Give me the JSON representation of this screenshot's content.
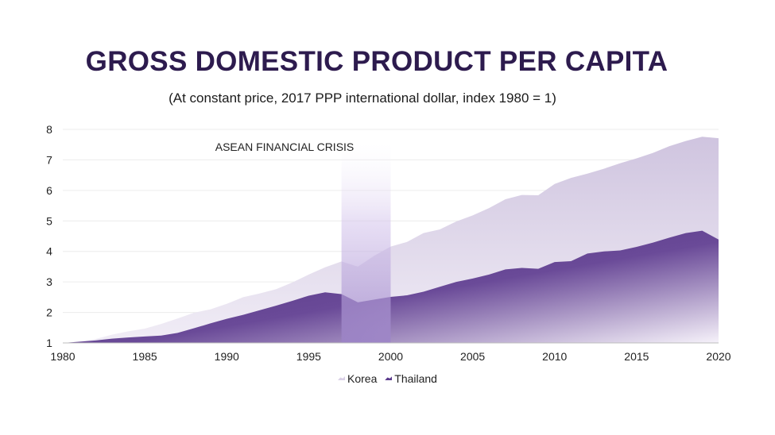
{
  "title": "GROSS DOMESTIC PRODUCT PER CAPITA",
  "subtitle": "(At constant price, 2017 PPP international dollar, index 1980 = 1)",
  "chart_data": {
    "type": "area",
    "x": [
      1980,
      1981,
      1982,
      1983,
      1984,
      1985,
      1986,
      1987,
      1988,
      1989,
      1990,
      1991,
      1992,
      1993,
      1994,
      1995,
      1996,
      1997,
      1998,
      1999,
      2000,
      2001,
      2002,
      2003,
      2004,
      2005,
      2006,
      2007,
      2008,
      2009,
      2010,
      2011,
      2012,
      2013,
      2014,
      2015,
      2016,
      2017,
      2018,
      2019,
      2020
    ],
    "series": [
      {
        "name": "Korea",
        "color": "#d9d0e6",
        "values": [
          1.0,
          1.05,
          1.13,
          1.27,
          1.38,
          1.47,
          1.62,
          1.8,
          1.99,
          2.1,
          2.28,
          2.5,
          2.62,
          2.76,
          2.98,
          3.24,
          3.48,
          3.67,
          3.5,
          3.86,
          4.16,
          4.31,
          4.6,
          4.72,
          4.98,
          5.18,
          5.42,
          5.71,
          5.85,
          5.84,
          6.21,
          6.41,
          6.55,
          6.71,
          6.89,
          7.05,
          7.23,
          7.45,
          7.62,
          7.76,
          7.71
        ]
      },
      {
        "name": "Thailand",
        "color": "#5b3a8c",
        "values": [
          1.0,
          1.04,
          1.08,
          1.14,
          1.18,
          1.21,
          1.24,
          1.33,
          1.48,
          1.64,
          1.79,
          1.92,
          2.07,
          2.22,
          2.38,
          2.55,
          2.66,
          2.6,
          2.33,
          2.42,
          2.51,
          2.56,
          2.68,
          2.84,
          3.0,
          3.11,
          3.24,
          3.41,
          3.46,
          3.43,
          3.65,
          3.68,
          3.93,
          4.0,
          4.03,
          4.15,
          4.29,
          4.45,
          4.6,
          4.68,
          4.39
        ]
      }
    ],
    "xlim": [
      1980,
      2020
    ],
    "ylim": [
      1,
      8
    ],
    "yticks": [
      1,
      2,
      3,
      4,
      5,
      6,
      7,
      8
    ],
    "xticks": [
      1980,
      1985,
      1990,
      1995,
      2000,
      2005,
      2010,
      2015,
      2020
    ],
    "grid": "horizontal",
    "legend": "bottom-center",
    "annotations": [
      {
        "text": "ASEAN FINANCIAL CRISIS",
        "x_start": 1997,
        "x_end": 2000
      }
    ]
  }
}
